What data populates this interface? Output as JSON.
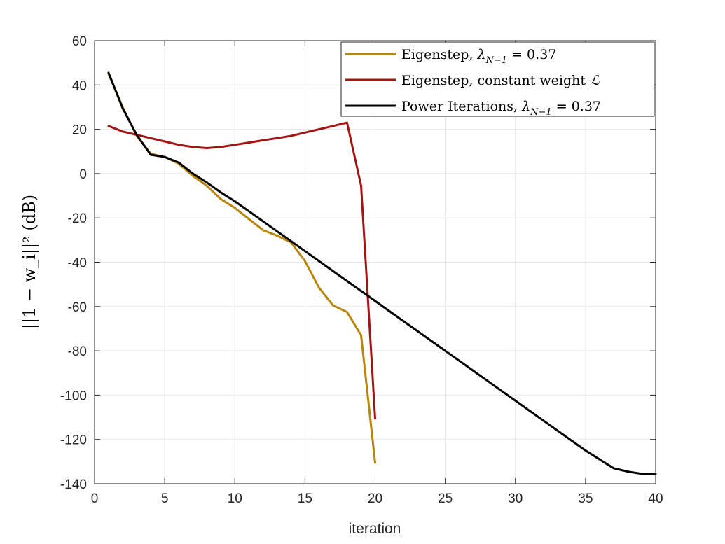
{
  "chart_data": {
    "type": "line",
    "title": "",
    "xlabel": "iteration",
    "ylabel": "||1 − w_i||² (dB)",
    "xlim": [
      0,
      40
    ],
    "ylim": [
      -140,
      60
    ],
    "xticks": [
      0,
      5,
      10,
      15,
      20,
      25,
      30,
      35,
      40
    ],
    "yticks": [
      60,
      40,
      20,
      0,
      -20,
      -40,
      -60,
      -80,
      -100,
      -120,
      -140
    ],
    "grid": true,
    "legend_position": "top-right",
    "series": [
      {
        "name": "Eigenstep, λ_{N−1} = 0.37",
        "label_main": "Eigenstep, ",
        "label_sym": "λ",
        "label_sub": "N−1",
        "label_tail": " = 0.37",
        "color": "#b8860b",
        "x": [
          1,
          2,
          3,
          4,
          5,
          6,
          7,
          8,
          9,
          10,
          11,
          12,
          13,
          14,
          15,
          16,
          17,
          18,
          19,
          20
        ],
        "y": [
          45,
          30,
          17,
          9,
          7.5,
          4.5,
          -1,
          -5.5,
          -11.5,
          -15.5,
          -20.5,
          -25.5,
          -28,
          -31,
          -39.5,
          -51.5,
          -59.5,
          -62.5,
          -73,
          -130.5
        ]
      },
      {
        "name": "Eigenstep, constant weight ℒ",
        "label_main": "Eigenstep, constant weight ",
        "label_sym": "ℒ",
        "label_sub": "",
        "label_tail": "",
        "color": "#a31515",
        "x": [
          1,
          2,
          3,
          4,
          5,
          6,
          7,
          8,
          9,
          10,
          11,
          12,
          13,
          14,
          15,
          16,
          17,
          18,
          19,
          20
        ],
        "y": [
          21.5,
          19,
          17.5,
          16,
          14.5,
          13,
          12,
          11.5,
          12,
          13,
          14,
          15,
          16,
          17,
          18.5,
          20,
          21.5,
          23,
          -5.5,
          -110.5
        ]
      },
      {
        "name": "Power Iterations, λ_{N−1} = 0.37",
        "label_main": "Power Iterations, ",
        "label_sym": "λ",
        "label_sub": "N−1",
        "label_tail": " = 0.37",
        "color": "#000000",
        "x": [
          1,
          2,
          3,
          4,
          5,
          6,
          7,
          8,
          9,
          10,
          11,
          12,
          13,
          14,
          15,
          16,
          17,
          18,
          19,
          20,
          21,
          22,
          23,
          24,
          25,
          26,
          27,
          28,
          29,
          30,
          31,
          32,
          33,
          34,
          35,
          36,
          37,
          38,
          39,
          40
        ],
        "y": [
          45.5,
          29.5,
          17.5,
          8.5,
          7.5,
          5,
          0,
          -4,
          -8.5,
          -12.5,
          -17,
          -21.5,
          -26,
          -30.5,
          -35,
          -39.5,
          -44,
          -48.5,
          -53,
          -57.5,
          -62,
          -66.5,
          -71,
          -75.5,
          -80,
          -84.5,
          -89,
          -93.5,
          -98,
          -102.5,
          -107,
          -111.5,
          -116,
          -120.5,
          -125,
          -129,
          -133,
          -134.5,
          -135.5,
          -135.5
        ]
      }
    ]
  }
}
